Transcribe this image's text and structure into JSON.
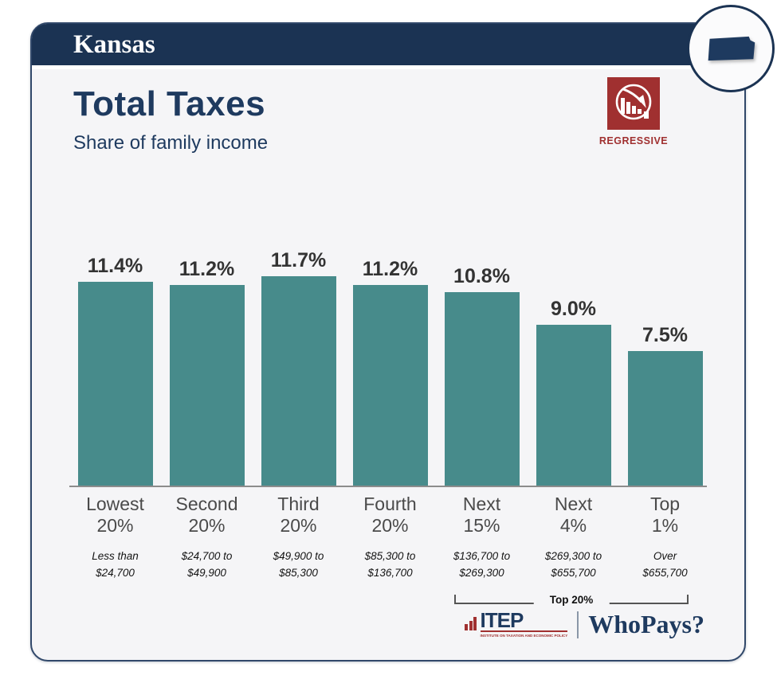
{
  "header": {
    "state": "Kansas"
  },
  "title": {
    "main": "Total Taxes",
    "subtitle": "Share of family income"
  },
  "badge": {
    "label": "REGRESSIVE"
  },
  "chart_data": {
    "type": "bar",
    "title": "Total Taxes",
    "subtitle": "Share of family income",
    "categories": [
      "Lowest 20%",
      "Second 20%",
      "Third 20%",
      "Fourth 20%",
      "Next 15%",
      "Next 4%",
      "Top 1%"
    ],
    "categories_lines": [
      [
        "Lowest",
        "20%"
      ],
      [
        "Second",
        "20%"
      ],
      [
        "Third",
        "20%"
      ],
      [
        "Fourth",
        "20%"
      ],
      [
        "Next",
        "15%"
      ],
      [
        "Next",
        "4%"
      ],
      [
        "Top",
        "1%"
      ]
    ],
    "values": [
      11.4,
      11.2,
      11.7,
      11.2,
      10.8,
      9.0,
      7.5
    ],
    "data_labels": [
      "11.4%",
      "11.2%",
      "11.7%",
      "11.2%",
      "10.8%",
      "9.0%",
      "7.5%"
    ],
    "income_ranges": [
      "Less than $24,700",
      "$24,700 to $49,900",
      "$49,900 to $85,300",
      "$85,300 to $136,700",
      "$136,700 to $269,300",
      "$269,300 to $655,700",
      "Over $655,700"
    ],
    "income_ranges_lines": [
      [
        "Less than",
        "$24,700"
      ],
      [
        "$24,700 to",
        "$49,900"
      ],
      [
        "$49,900 to",
        "$85,300"
      ],
      [
        "$85,300 to",
        "$136,700"
      ],
      [
        "$136,700 to",
        "$269,300"
      ],
      [
        "$269,300 to",
        "$655,700"
      ],
      [
        "Over",
        "$655,700"
      ]
    ],
    "annotation": "Top 20%",
    "annotation_span": "last 3 categories",
    "xlabel": "",
    "ylabel": "",
    "ylim": [
      0,
      12.5
    ],
    "grid": false,
    "legend": "none",
    "bar_color": "#478b8b"
  },
  "footer": {
    "itep_name": "ITEP",
    "itep_tagline": "INSTITUTE ON TAXATION AND ECONOMIC POLICY",
    "whopays": "WhoPays?"
  },
  "colors": {
    "navy": "#1b3353",
    "title_navy": "#1e3a5f",
    "teal": "#478b8b",
    "red": "#a03030",
    "card_bg": "#f5f5f7",
    "axis_gray": "#8c8c8c",
    "value_label": "#333333",
    "category_label": "#4a4a4a"
  }
}
